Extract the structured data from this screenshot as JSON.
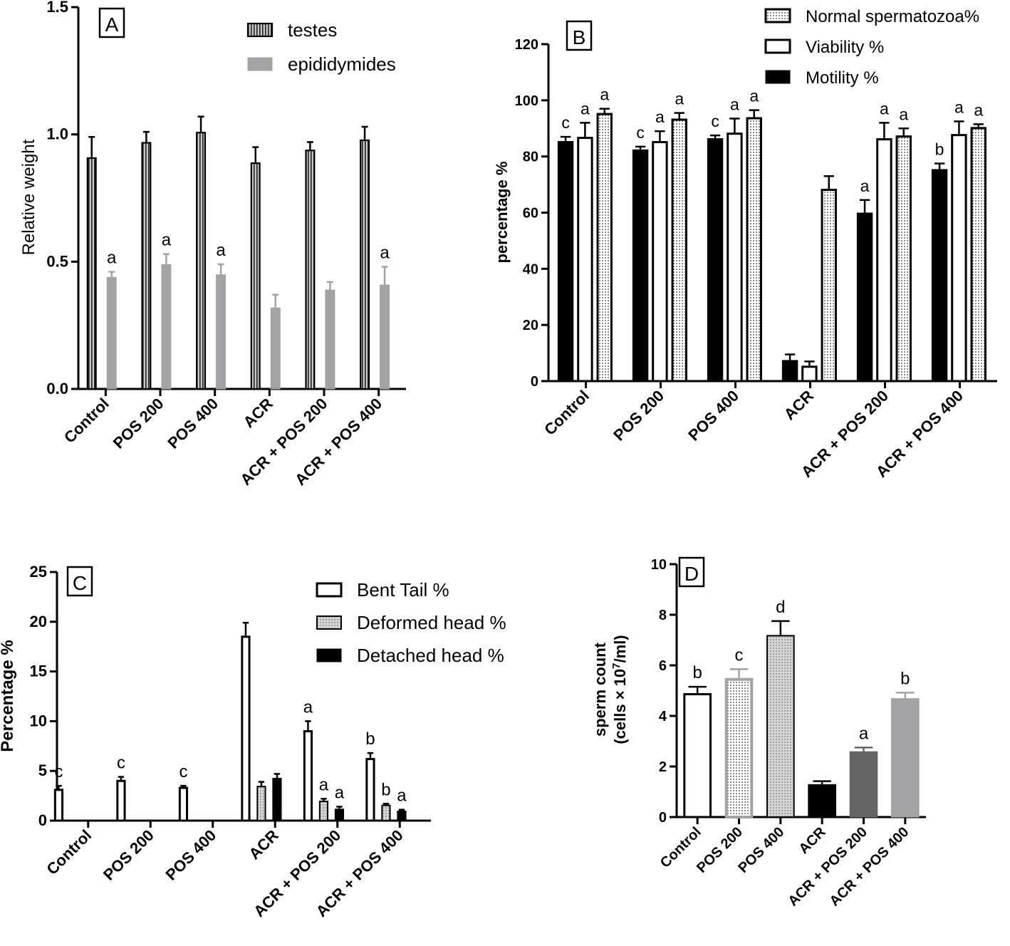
{
  "colors": {
    "axis": "#000000",
    "light_gray": "#a3a3a5",
    "dark_gray": "#656565",
    "mid_gray": "#d6d6d6",
    "white": "#ffffff"
  },
  "chart_data": [
    {
      "panel": "A",
      "type": "bar",
      "ylabel": "Relative weight",
      "ylim": [
        0,
        1.5
      ],
      "yticks": [
        "0.0",
        "0.5",
        "1.0",
        "1.5"
      ],
      "ytick_values": [
        0,
        0.5,
        1.0,
        1.5
      ],
      "categories": [
        "Control",
        "POS 200",
        "POS 400",
        "ACR",
        "ACR + POS 200",
        "ACR + POS 400"
      ],
      "legend_position": "top-right",
      "series": [
        {
          "name": "testes",
          "style": "striped",
          "values": [
            0.91,
            0.97,
            1.01,
            0.89,
            0.94,
            0.98
          ],
          "errors": [
            0.08,
            0.04,
            0.06,
            0.06,
            0.03,
            0.05
          ],
          "labels": [
            "",
            "",
            "",
            "",
            "",
            ""
          ]
        },
        {
          "name": "epididymides",
          "style": "gray",
          "values": [
            0.44,
            0.49,
            0.45,
            0.32,
            0.39,
            0.41
          ],
          "errors": [
            0.02,
            0.04,
            0.04,
            0.05,
            0.03,
            0.07
          ],
          "labels": [
            "a",
            "a",
            "a",
            "",
            "",
            "a"
          ]
        }
      ]
    },
    {
      "panel": "B",
      "type": "bar",
      "ylabel": "percentage %",
      "ylim": [
        0,
        120
      ],
      "yticks": [
        "0",
        "20",
        "40",
        "60",
        "80",
        "100",
        "120"
      ],
      "ytick_values": [
        0,
        20,
        40,
        60,
        80,
        100,
        120
      ],
      "categories": [
        "Control",
        "POS 200",
        "POS 400",
        "ACR",
        "ACR + POS 200",
        "ACR + POS 400"
      ],
      "legend_position": "top-right",
      "legend_order": [
        2,
        1,
        0
      ],
      "series": [
        {
          "name": "Motility %",
          "style": "black",
          "values": [
            85.5,
            82.5,
            86.5,
            7.5,
            60.0,
            75.5
          ],
          "errors": [
            1.5,
            1.0,
            1.0,
            2.0,
            4.5,
            2.0
          ],
          "labels": [
            "c",
            "c",
            "c",
            "",
            "a",
            "b"
          ]
        },
        {
          "name": "Viability %",
          "style": "white",
          "values": [
            87.0,
            85.5,
            88.5,
            5.5,
            86.5,
            88.0
          ],
          "errors": [
            5.0,
            3.5,
            5.0,
            1.5,
            5.5,
            4.5
          ],
          "labels": [
            "a",
            "a",
            "a",
            "",
            "a",
            "a"
          ]
        },
        {
          "name": "Normal spermatozoa%",
          "style": "dotted",
          "values": [
            95.5,
            93.5,
            94.0,
            68.5,
            87.5,
            90.5
          ],
          "errors": [
            1.5,
            2.0,
            2.5,
            4.5,
            2.5,
            1.0
          ],
          "labels": [
            "a",
            "a",
            "a",
            "",
            "a",
            "a"
          ]
        }
      ]
    },
    {
      "panel": "C",
      "type": "bar",
      "ylabel": "Percentage %",
      "ylim": [
        0,
        25
      ],
      "yticks": [
        "0",
        "5",
        "10",
        "15",
        "20",
        "25"
      ],
      "ytick_values": [
        0,
        5,
        10,
        15,
        20,
        25
      ],
      "categories": [
        "Control",
        "POS 200",
        "POS 400",
        "ACR",
        "ACR + POS 200",
        "ACR + POS 400"
      ],
      "legend_position": "top-right",
      "series": [
        {
          "name": "Bent Tail %",
          "style": "white",
          "values": [
            3.2,
            4.1,
            3.4,
            18.6,
            9.1,
            6.3
          ],
          "errors": [
            0.3,
            0.3,
            0.1,
            1.3,
            0.9,
            0.5
          ],
          "labels": [
            "c",
            "c",
            "c",
            "",
            "a",
            "b"
          ]
        },
        {
          "name": "Deformed head %",
          "style": "dotted_gray",
          "values": [
            0,
            0,
            0,
            3.5,
            2.0,
            1.6
          ],
          "errors": [
            0,
            0,
            0,
            0.4,
            0.2,
            0.1
          ],
          "labels": [
            "",
            "",
            "",
            "",
            "a",
            "b"
          ]
        },
        {
          "name": "Detached head %",
          "style": "black",
          "values": [
            0,
            0,
            0,
            4.3,
            1.2,
            1.0
          ],
          "errors": [
            0,
            0,
            0,
            0.4,
            0.2,
            0.1
          ],
          "labels": [
            "",
            "",
            "",
            "",
            "a",
            "a"
          ]
        }
      ]
    },
    {
      "panel": "D",
      "type": "bar",
      "ylabel_line1": "sperm count",
      "ylabel_line2_prefix": "(cells × 10",
      "ylabel_line2_sup": "7",
      "ylabel_line2_suffix": "/ml)",
      "ylim": [
        0,
        10
      ],
      "yticks": [
        "0",
        "2",
        "4",
        "6",
        "8",
        "10"
      ],
      "ytick_values": [
        0,
        2,
        4,
        6,
        8,
        10
      ],
      "categories": [
        "Control",
        "POS 200",
        "POS 400",
        "ACR",
        "ACR + POS 200",
        "ACR + POS 400"
      ],
      "values": [
        4.9,
        5.5,
        7.2,
        1.3,
        2.6,
        4.7
      ],
      "errors": [
        0.25,
        0.35,
        0.55,
        0.12,
        0.15,
        0.22
      ],
      "labels": [
        "b",
        "c",
        "d",
        "",
        "a",
        "b"
      ],
      "styles": [
        "white",
        "dotted_outline",
        "dotted_gray",
        "black",
        "dark_gray",
        "light_gray"
      ]
    }
  ]
}
